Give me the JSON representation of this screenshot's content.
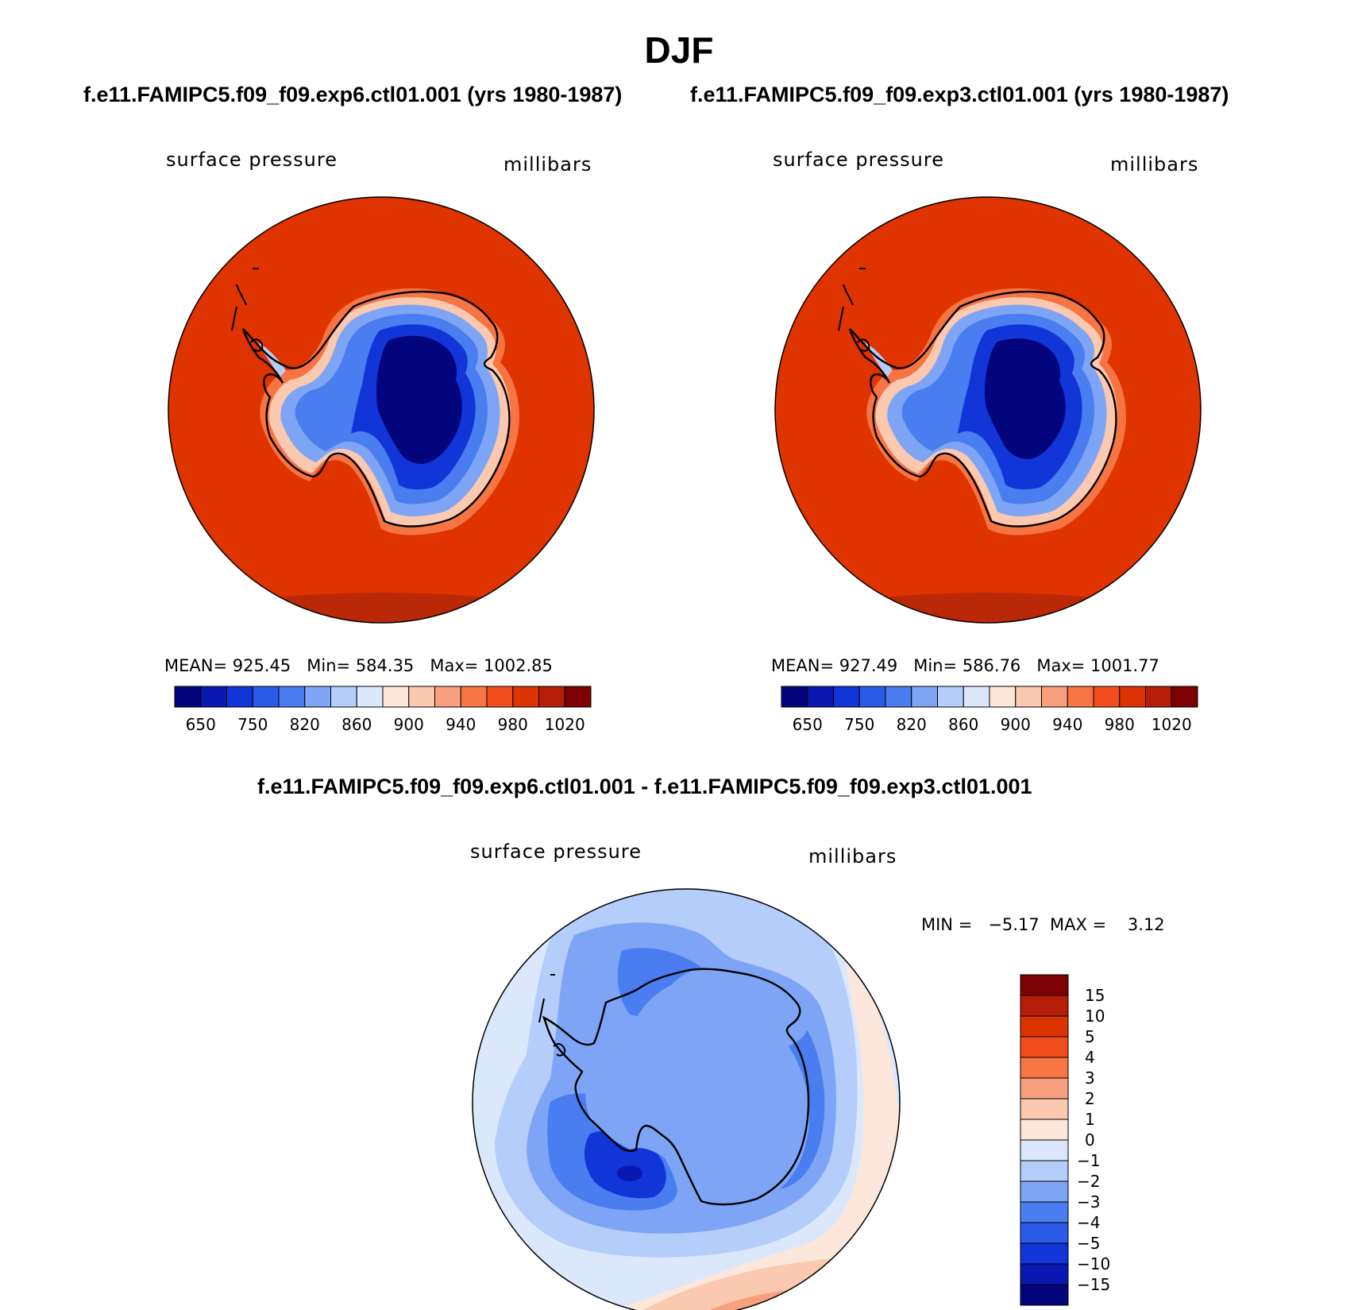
{
  "title": "DJF",
  "panels": [
    {
      "case_title": "f.e11.FAMIPC5.f09_f09.exp6.ctl01.001 (yrs 1980-1987)",
      "variable": "surface pressure",
      "units": "millibars",
      "stats": {
        "mean_label": "MEAN=",
        "mean": "925.45",
        "min_label": "Min=",
        "min": "584.35",
        "max_label": "Max=",
        "max": "1002.85"
      }
    },
    {
      "case_title": "f.e11.FAMIPC5.f09_f09.exp3.ctl01.001 (yrs 1980-1987)",
      "variable": "surface pressure",
      "units": "millibars",
      "stats": {
        "mean_label": "MEAN=",
        "mean": "927.49",
        "min_label": "Min=",
        "min": "586.76",
        "max_label": "Max=",
        "max": "1001.77"
      }
    }
  ],
  "colorbar_top": {
    "colors": [
      "#03057c",
      "#0a18b2",
      "#1235d8",
      "#2a5ae8",
      "#4a7df0",
      "#7ea5f5",
      "#b4cdfb",
      "#dbe8fc",
      "#fde7da",
      "#fbc8b0",
      "#f8a07e",
      "#f77443",
      "#f04c1c",
      "#dc3303",
      "#b51d07",
      "#7e0103"
    ],
    "tick_labels": [
      "650",
      "750",
      "820",
      "860",
      "900",
      "940",
      "980",
      "1020"
    ]
  },
  "difference": {
    "title": "f.e11.FAMIPC5.f09_f09.exp6.ctl01.001 - f.e11.FAMIPC5.f09_f09.exp3.ctl01.001",
    "variable": "surface pressure",
    "units": "millibars",
    "stats": {
      "min_label": "MIN =",
      "min": "−5.17",
      "max_label": "MAX =",
      "max": "3.12"
    },
    "colorbar": {
      "colors": [
        "#03057c",
        "#0a18b2",
        "#1235d8",
        "#2a5ae8",
        "#4a7df0",
        "#7ea5f5",
        "#b4cdfb",
        "#dbe8fc",
        "#fde7da",
        "#fbc8b0",
        "#f8a07e",
        "#f77443",
        "#f04c1c",
        "#dc3303",
        "#b51d07",
        "#7e0103"
      ],
      "tick_labels": [
        "15",
        "10",
        "5",
        "4",
        "3",
        "2",
        "1",
        "0",
        "−1",
        "−2",
        "−3",
        "−4",
        "−5",
        "−10",
        "−15"
      ]
    }
  },
  "map_colors": {
    "ocean": "#df3300",
    "ocean_dark": "#b92807",
    "coast_band": "#f77443",
    "diff_base": "#b4cdfb"
  }
}
